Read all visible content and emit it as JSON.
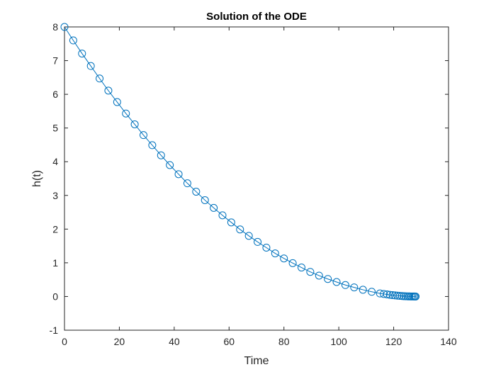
{
  "chart_data": {
    "type": "line",
    "title": "Solution of the ODE",
    "xlabel": "Time",
    "ylabel": "h(t)",
    "xlim": [
      0,
      140
    ],
    "ylim": [
      -1,
      8
    ],
    "xticks": [
      "0",
      "20",
      "40",
      "60",
      "80",
      "100",
      "120",
      "140"
    ],
    "yticks": [
      "-1",
      "0",
      "1",
      "2",
      "3",
      "4",
      "5",
      "6",
      "7",
      "8"
    ],
    "grid": false,
    "marker": "circle",
    "line_color": "#0072BD",
    "series": [
      {
        "x": [
          0,
          3.2,
          6.4,
          9.6,
          12.8,
          16.0,
          19.2,
          22.4,
          25.6,
          28.8,
          32.0,
          35.2,
          38.4,
          41.6,
          44.8,
          48.0,
          51.2,
          54.4,
          57.6,
          60.8,
          64.0,
          67.2,
          70.4,
          73.6,
          76.8,
          80.0,
          83.2,
          86.4,
          89.6,
          92.8,
          96.0,
          99.2,
          102.4,
          105.6,
          108.8,
          112.0,
          115.0,
          116.4,
          117.6,
          118.6,
          119.6,
          120.5,
          121.4,
          122.2,
          123.0,
          123.7,
          124.4,
          125.1,
          125.7,
          126.3,
          126.8,
          127.3,
          127.7,
          128.0
        ],
        "y": [
          8.0,
          7.6,
          7.21,
          6.84,
          6.47,
          6.11,
          5.77,
          5.43,
          5.11,
          4.79,
          4.49,
          4.19,
          3.9,
          3.63,
          3.36,
          3.11,
          2.86,
          2.63,
          2.41,
          2.2,
          1.99,
          1.8,
          1.62,
          1.45,
          1.28,
          1.13,
          0.99,
          0.86,
          0.73,
          0.62,
          0.52,
          0.43,
          0.34,
          0.27,
          0.2,
          0.14,
          0.09,
          0.075,
          0.062,
          0.05,
          0.04,
          0.032,
          0.025,
          0.019,
          0.014,
          0.01,
          0.007,
          0.005,
          0.003,
          0.002,
          0.001,
          0.0005,
          0.0002,
          0.0
        ]
      }
    ]
  }
}
